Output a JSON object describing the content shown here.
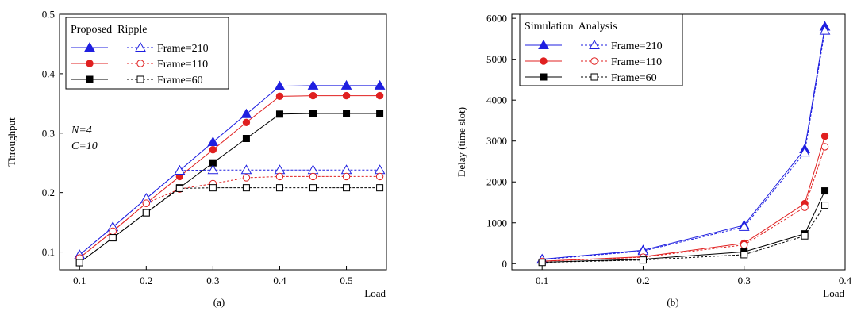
{
  "chart_data": [
    {
      "type": "line",
      "panel": "(a)",
      "title": "",
      "xlabel": "Load",
      "ylabel": "Throughput",
      "xlim": [
        0.07,
        0.56
      ],
      "ylim": [
        0.07,
        0.5
      ],
      "xticks": [
        0.1,
        0.2,
        0.3,
        0.4,
        0.5
      ],
      "xtick_labels": [
        "0.1",
        "0.2",
        "0.3",
        "0.4",
        "0.5"
      ],
      "yticks": [
        0.1,
        0.2,
        0.3,
        0.4,
        0.5
      ],
      "ytick_labels": [
        "0.1",
        "0.2",
        "0.3",
        "0.4",
        "0.5"
      ],
      "legend_title": "Proposed  Ripple",
      "legend_placement": "top-left",
      "legend_labels": [
        "Frame=210",
        "Frame=110",
        "Frame=60"
      ],
      "annotations": [
        "N=4",
        "C=10"
      ],
      "series": [
        {
          "name": "Proposed Frame=210",
          "color": "#1f1fe0",
          "marker": "triangle",
          "filled": true,
          "dashed": false,
          "x": [
            0.1,
            0.15,
            0.2,
            0.25,
            0.3,
            0.35,
            0.4,
            0.45,
            0.5,
            0.55
          ],
          "y": [
            0.095,
            0.142,
            0.19,
            0.237,
            0.285,
            0.332,
            0.379,
            0.38,
            0.38,
            0.38
          ]
        },
        {
          "name": "Proposed Frame=110",
          "color": "#e02020",
          "marker": "circle",
          "filled": true,
          "dashed": false,
          "x": [
            0.1,
            0.15,
            0.2,
            0.25,
            0.3,
            0.35,
            0.4,
            0.45,
            0.5,
            0.55
          ],
          "y": [
            0.09,
            0.135,
            0.182,
            0.227,
            0.272,
            0.318,
            0.362,
            0.363,
            0.363,
            0.363
          ]
        },
        {
          "name": "Proposed Frame=60",
          "color": "#000000",
          "marker": "square",
          "filled": true,
          "dashed": false,
          "x": [
            0.1,
            0.15,
            0.2,
            0.25,
            0.3,
            0.35,
            0.4,
            0.45,
            0.5,
            0.55
          ],
          "y": [
            0.082,
            0.124,
            0.166,
            0.208,
            0.25,
            0.291,
            0.332,
            0.333,
            0.333,
            0.333
          ]
        },
        {
          "name": "Ripple Frame=210",
          "color": "#1f1fe0",
          "marker": "triangle",
          "filled": false,
          "dashed": true,
          "x": [
            0.1,
            0.15,
            0.2,
            0.25,
            0.3,
            0.35,
            0.4,
            0.45,
            0.5,
            0.55
          ],
          "y": [
            0.095,
            0.142,
            0.19,
            0.237,
            0.238,
            0.238,
            0.238,
            0.238,
            0.238,
            0.238
          ]
        },
        {
          "name": "Ripple Frame=110",
          "color": "#e02020",
          "marker": "circle",
          "filled": false,
          "dashed": true,
          "x": [
            0.1,
            0.15,
            0.2,
            0.25,
            0.3,
            0.35,
            0.4,
            0.45,
            0.5,
            0.55
          ],
          "y": [
            0.09,
            0.135,
            0.182,
            0.206,
            0.215,
            0.225,
            0.227,
            0.227,
            0.227,
            0.227
          ]
        },
        {
          "name": "Ripple Frame=60",
          "color": "#000000",
          "marker": "square",
          "filled": false,
          "dashed": true,
          "x": [
            0.1,
            0.15,
            0.2,
            0.25,
            0.3,
            0.35,
            0.4,
            0.45,
            0.5,
            0.55
          ],
          "y": [
            0.082,
            0.124,
            0.166,
            0.207,
            0.208,
            0.208,
            0.208,
            0.208,
            0.208,
            0.208
          ]
        }
      ]
    },
    {
      "type": "line",
      "panel": "(b)",
      "title": "",
      "xlabel": "Load",
      "ylabel": "Delay (time slot)",
      "xlim": [
        0.07,
        0.4
      ],
      "ylim": [
        -150,
        6100
      ],
      "xticks": [
        0.1,
        0.2,
        0.3,
        0.4
      ],
      "xtick_labels": [
        "0.1",
        "0.2",
        "0.3",
        "0.4"
      ],
      "yticks": [
        0,
        1000,
        2000,
        3000,
        4000,
        5000,
        6000
      ],
      "ytick_labels": [
        "0",
        "1000",
        "2000",
        "3000",
        "4000",
        "5000",
        "6000"
      ],
      "legend_title": "Simulation  Analysis",
      "legend_placement": "top-left",
      "legend_labels": [
        "Frame=210",
        "Frame=110",
        "Frame=60"
      ],
      "annotations": [],
      "series": [
        {
          "name": "Simulation Frame=210",
          "color": "#1f1fe0",
          "marker": "triangle",
          "filled": true,
          "dashed": false,
          "x": [
            0.1,
            0.2,
            0.3,
            0.36,
            0.38
          ],
          "y": [
            110,
            330,
            940,
            2800,
            5800
          ]
        },
        {
          "name": "Simulation Frame=110",
          "color": "#e02020",
          "marker": "circle",
          "filled": true,
          "dashed": false,
          "x": [
            0.1,
            0.2,
            0.3,
            0.36,
            0.38
          ],
          "y": [
            60,
            170,
            500,
            1470,
            3120
          ]
        },
        {
          "name": "Simulation Frame=60",
          "color": "#000000",
          "marker": "square",
          "filled": true,
          "dashed": false,
          "x": [
            0.1,
            0.2,
            0.3,
            0.36,
            0.38
          ],
          "y": [
            35,
            110,
            290,
            730,
            1780
          ]
        },
        {
          "name": "Analysis Frame=210",
          "color": "#1f1fe0",
          "marker": "triangle",
          "filled": false,
          "dashed": true,
          "x": [
            0.1,
            0.2,
            0.3,
            0.36,
            0.38
          ],
          "y": [
            100,
            310,
            900,
            2720,
            5700
          ]
        },
        {
          "name": "Analysis Frame=110",
          "color": "#e02020",
          "marker": "circle",
          "filled": false,
          "dashed": true,
          "x": [
            0.1,
            0.2,
            0.3,
            0.36,
            0.38
          ],
          "y": [
            55,
            160,
            460,
            1380,
            2860
          ]
        },
        {
          "name": "Analysis Frame=60",
          "color": "#000000",
          "marker": "square",
          "filled": false,
          "dashed": true,
          "x": [
            0.1,
            0.2,
            0.3,
            0.36,
            0.38
          ],
          "y": [
            30,
            90,
            220,
            680,
            1430
          ]
        }
      ]
    }
  ]
}
